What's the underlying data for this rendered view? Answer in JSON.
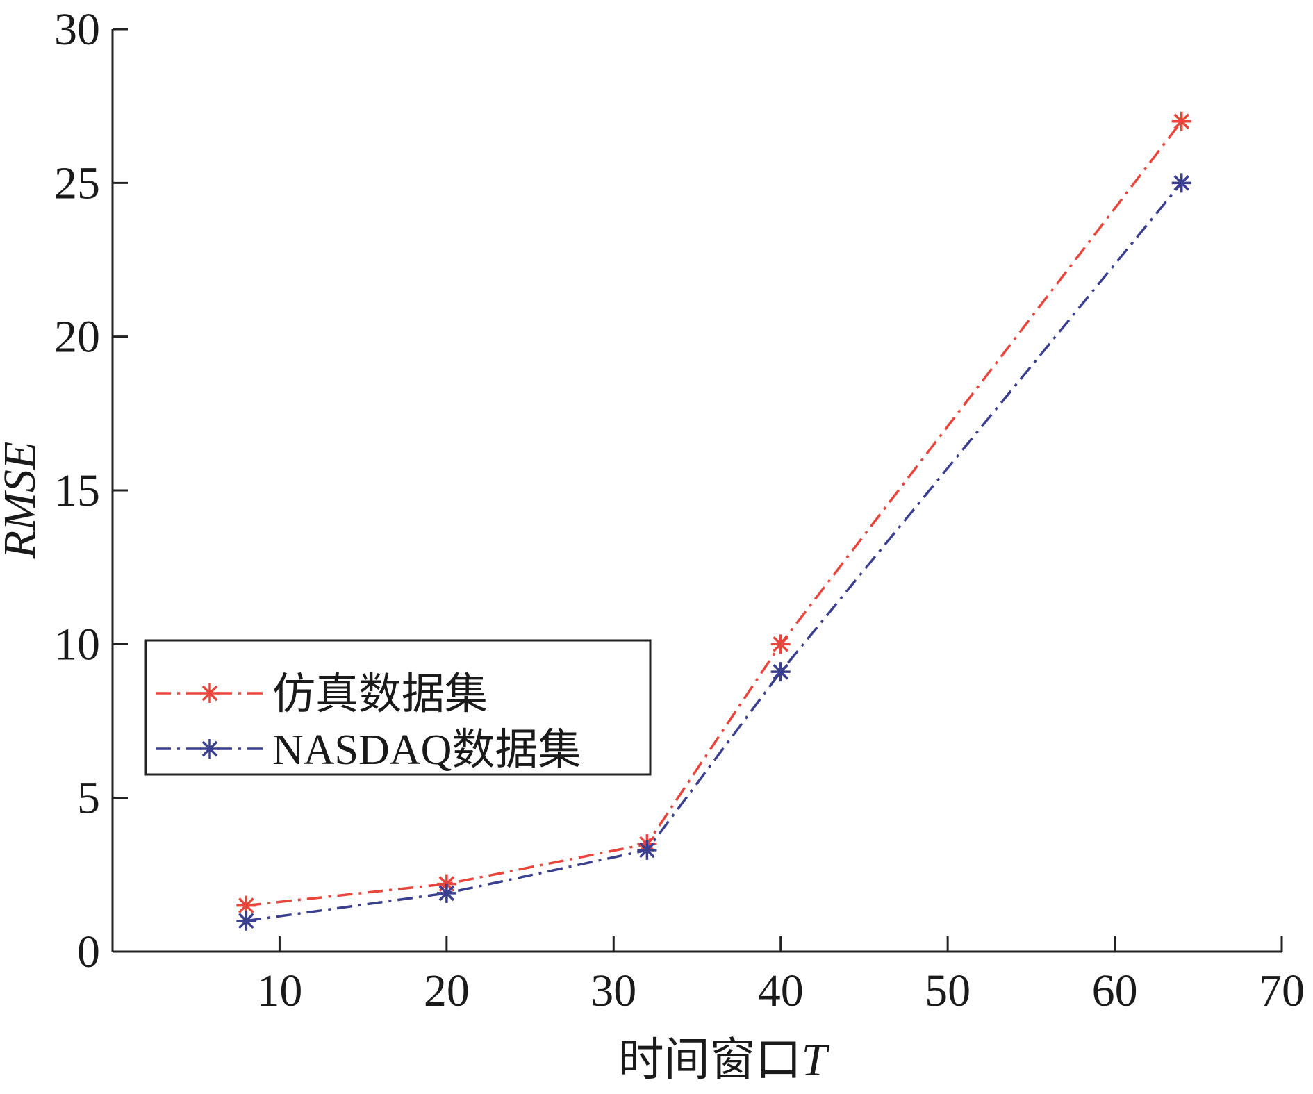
{
  "chart_data": {
    "type": "line",
    "title": "",
    "xlabel": "时间窗口",
    "xlabel_var": "T",
    "ylabel": "RMSE",
    "xlim": [
      0,
      70
    ],
    "ylim": [
      0,
      30
    ],
    "xticks": [
      10,
      20,
      30,
      40,
      50,
      60,
      70
    ],
    "yticks": [
      0,
      5,
      10,
      15,
      20,
      25,
      30
    ],
    "grid": false,
    "legend_position": "center-left",
    "x": [
      8,
      20,
      32,
      40,
      64
    ],
    "series": [
      {
        "name": "仿真数据集",
        "color": "#e8453c",
        "marker": "asterisk",
        "line_style": "dash-dot",
        "values": [
          1.5,
          2.2,
          3.5,
          10.0,
          27.0
        ]
      },
      {
        "name": "NASDAQ数据集",
        "color": "#3b3f8f",
        "marker": "asterisk",
        "line_style": "dash-dot",
        "values": [
          1.0,
          1.9,
          3.3,
          9.1,
          25.0
        ]
      }
    ]
  }
}
